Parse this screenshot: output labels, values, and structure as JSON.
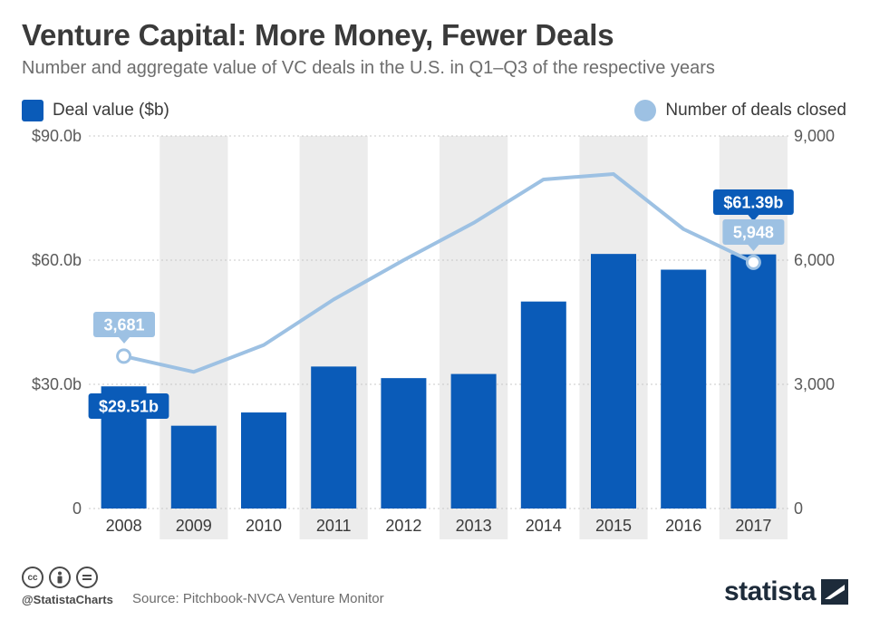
{
  "title": "Venture Capital: More Money, Fewer Deals",
  "subtitle": "Number and aggregate value of VC deals in the U.S. in Q1–Q3 of the respective years",
  "colors": {
    "bar": "#0a5bb8",
    "line": "#9dc1e3",
    "band": "#ececec",
    "label_dark": "#0a5bb8",
    "label_light": "#9dc1e3"
  },
  "footer": {
    "handle": "@StatistaCharts",
    "source": "Source: Pitchbook-NVCA Venture Monitor",
    "brand": "statista",
    "icons": [
      "creative-commons-icon",
      "attribution-icon",
      "no-derivatives-icon"
    ]
  },
  "chart_data": {
    "type": "bar",
    "categories": [
      "2008",
      "2009",
      "2010",
      "2011",
      "2012",
      "2013",
      "2014",
      "2015",
      "2016",
      "2017"
    ],
    "series": [
      {
        "name": "Deal value ($b)",
        "type": "bar",
        "axis": "left",
        "values": [
          29.51,
          20.0,
          23.2,
          34.3,
          31.5,
          32.5,
          50.0,
          61.5,
          57.7,
          61.39
        ]
      },
      {
        "name": "Number of deals closed",
        "type": "line",
        "axis": "right",
        "values": [
          3681,
          3300,
          3950,
          5050,
          6000,
          6900,
          7950,
          8080,
          6750,
          5948
        ]
      }
    ],
    "y_left": {
      "ticks": [
        "$90.0b",
        "$60.0b",
        "$30.0b",
        "0"
      ],
      "ylim": [
        0,
        90
      ]
    },
    "y_right": {
      "ticks": [
        "9,000",
        "6,000",
        "3,000",
        "0"
      ],
      "ylim": [
        0,
        9000
      ]
    },
    "annotations": [
      {
        "label": "$29.51b",
        "series": 0,
        "index": 0
      },
      {
        "label": "3,681",
        "series": 1,
        "index": 0
      },
      {
        "label": "$61.39b",
        "series": 0,
        "index": 9
      },
      {
        "label": "5,948",
        "series": 1,
        "index": 9
      }
    ],
    "grid": true,
    "legend": "top"
  }
}
